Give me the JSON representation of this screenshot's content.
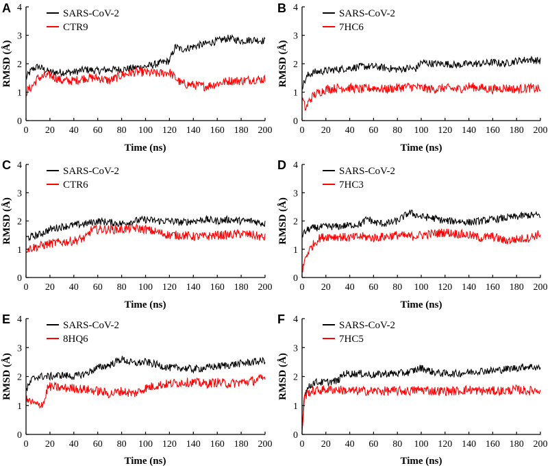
{
  "figure": {
    "description_free": true
  },
  "chart_data": [
    {
      "panel": "A",
      "type": "line",
      "xlabel": "Time (ns)",
      "ylabel": "RMSD (Å)",
      "xlim": [
        0,
        200
      ],
      "ylim": [
        0,
        4
      ],
      "xticks": [
        0,
        20,
        40,
        60,
        80,
        100,
        120,
        140,
        160,
        180,
        200
      ],
      "yticks": [
        0,
        1,
        2,
        3,
        4
      ],
      "series": [
        {
          "name": "SARS-CoV-2",
          "color": "#000000",
          "x": [
            0,
            5,
            10,
            20,
            30,
            40,
            50,
            60,
            70,
            80,
            90,
            100,
            110,
            120,
            125,
            130,
            140,
            150,
            160,
            170,
            180,
            190,
            200
          ],
          "y": [
            1.5,
            1.8,
            1.9,
            1.7,
            1.7,
            1.7,
            1.8,
            1.75,
            1.8,
            1.8,
            1.85,
            1.9,
            2.0,
            2.1,
            2.6,
            2.5,
            2.6,
            2.7,
            2.8,
            2.9,
            2.8,
            2.85,
            2.8
          ]
        },
        {
          "name": "CTR9",
          "color": "#ff0000",
          "x": [
            0,
            5,
            10,
            20,
            30,
            40,
            50,
            60,
            70,
            80,
            90,
            100,
            110,
            120,
            125,
            130,
            140,
            150,
            160,
            170,
            180,
            190,
            200
          ],
          "y": [
            1.0,
            1.2,
            1.5,
            1.6,
            1.4,
            1.4,
            1.5,
            1.5,
            1.4,
            1.6,
            1.7,
            1.7,
            1.65,
            1.7,
            1.5,
            1.3,
            1.25,
            1.2,
            1.3,
            1.4,
            1.4,
            1.45,
            1.45
          ]
        }
      ]
    },
    {
      "panel": "B",
      "type": "line",
      "xlabel": "Time (ns)",
      "ylabel": "RMSD (Å)",
      "xlim": [
        0,
        200
      ],
      "ylim": [
        0,
        4
      ],
      "xticks": [
        0,
        20,
        40,
        60,
        80,
        100,
        120,
        140,
        160,
        180,
        200
      ],
      "yticks": [
        0,
        1,
        2,
        3,
        4
      ],
      "series": [
        {
          "name": "SARS-CoV-2",
          "color": "#000000",
          "x": [
            0,
            5,
            10,
            20,
            30,
            40,
            50,
            60,
            70,
            80,
            90,
            95,
            100,
            110,
            120,
            130,
            140,
            150,
            160,
            170,
            180,
            190,
            200
          ],
          "y": [
            1.2,
            1.6,
            1.7,
            1.75,
            1.8,
            1.85,
            1.9,
            1.9,
            1.85,
            1.8,
            1.85,
            1.8,
            2.05,
            2.0,
            2.0,
            1.95,
            2.0,
            2.0,
            2.05,
            2.0,
            2.1,
            2.15,
            2.1
          ]
        },
        {
          "name": "7HC6",
          "color": "#ff0000",
          "x": [
            0,
            3,
            6,
            10,
            15,
            20,
            30,
            40,
            50,
            60,
            70,
            80,
            90,
            100,
            110,
            120,
            130,
            140,
            150,
            160,
            170,
            180,
            190,
            200
          ],
          "y": [
            0.8,
            0.4,
            0.7,
            0.9,
            1.0,
            1.1,
            1.15,
            1.15,
            1.1,
            1.15,
            1.1,
            1.15,
            1.2,
            1.15,
            1.1,
            1.15,
            1.1,
            1.2,
            1.15,
            1.1,
            1.15,
            1.1,
            1.15,
            1.1
          ]
        }
      ]
    },
    {
      "panel": "C",
      "type": "line",
      "xlabel": "Time (ns)",
      "ylabel": "RMSD (Å)",
      "xlim": [
        0,
        200
      ],
      "ylim": [
        0,
        4
      ],
      "xticks": [
        0,
        20,
        40,
        60,
        80,
        100,
        120,
        140,
        160,
        180,
        200
      ],
      "yticks": [
        0,
        1,
        2,
        3,
        4
      ],
      "series": [
        {
          "name": "SARS-CoV-2",
          "color": "#000000",
          "x": [
            0,
            10,
            20,
            30,
            40,
            50,
            60,
            70,
            80,
            90,
            100,
            110,
            120,
            130,
            140,
            150,
            160,
            170,
            180,
            190,
            200
          ],
          "y": [
            1.4,
            1.5,
            1.7,
            1.8,
            1.85,
            1.9,
            2.0,
            1.95,
            1.9,
            2.0,
            2.05,
            2.0,
            2.0,
            1.95,
            2.0,
            2.05,
            2.0,
            2.05,
            2.0,
            2.0,
            1.9
          ]
        },
        {
          "name": "CTR6",
          "color": "#ff0000",
          "x": [
            0,
            10,
            20,
            30,
            40,
            50,
            55,
            60,
            70,
            80,
            90,
            100,
            110,
            120,
            130,
            140,
            150,
            160,
            170,
            180,
            190,
            200
          ],
          "y": [
            1.0,
            1.1,
            1.2,
            1.25,
            1.3,
            1.4,
            1.7,
            1.7,
            1.7,
            1.7,
            1.75,
            1.7,
            1.6,
            1.5,
            1.5,
            1.45,
            1.45,
            1.5,
            1.5,
            1.55,
            1.5,
            1.4
          ]
        }
      ]
    },
    {
      "panel": "D",
      "type": "line",
      "xlabel": "Time (ns)",
      "ylabel": "RMSD (Å)",
      "xlim": [
        0,
        200
      ],
      "ylim": [
        0,
        4
      ],
      "xticks": [
        0,
        20,
        40,
        60,
        80,
        100,
        120,
        140,
        160,
        180,
        200
      ],
      "yticks": [
        0,
        1,
        2,
        3,
        4
      ],
      "series": [
        {
          "name": "SARS-CoV-2",
          "color": "#000000",
          "x": [
            0,
            5,
            10,
            20,
            30,
            40,
            50,
            55,
            60,
            70,
            80,
            90,
            100,
            110,
            120,
            130,
            140,
            150,
            160,
            170,
            180,
            190,
            200
          ],
          "y": [
            1.5,
            1.7,
            1.75,
            1.8,
            1.8,
            1.85,
            1.9,
            2.1,
            1.95,
            1.9,
            2.0,
            2.3,
            2.15,
            2.1,
            2.0,
            2.0,
            1.95,
            2.0,
            2.05,
            2.1,
            2.15,
            2.2,
            2.2
          ]
        },
        {
          "name": "7HC3",
          "color": "#ff0000",
          "x": [
            0,
            2,
            5,
            10,
            15,
            20,
            30,
            40,
            50,
            60,
            70,
            80,
            90,
            100,
            110,
            120,
            130,
            140,
            150,
            160,
            170,
            180,
            190,
            200
          ],
          "y": [
            0.1,
            0.6,
            0.9,
            1.2,
            1.4,
            1.45,
            1.45,
            1.4,
            1.45,
            1.4,
            1.45,
            1.5,
            1.45,
            1.5,
            1.55,
            1.6,
            1.55,
            1.5,
            1.4,
            1.45,
            1.3,
            1.35,
            1.4,
            1.55
          ]
        }
      ]
    },
    {
      "panel": "E",
      "type": "line",
      "xlabel": "Time (ns)",
      "ylabel": "RMSD (Å)",
      "xlim": [
        0,
        200
      ],
      "ylim": [
        0,
        4
      ],
      "xticks": [
        0,
        20,
        40,
        60,
        80,
        100,
        120,
        140,
        160,
        180,
        200
      ],
      "yticks": [
        0,
        1,
        2,
        3,
        4
      ],
      "series": [
        {
          "name": "SARS-CoV-2",
          "color": "#000000",
          "x": [
            0,
            5,
            10,
            20,
            30,
            40,
            50,
            60,
            70,
            80,
            90,
            100,
            110,
            120,
            130,
            140,
            150,
            160,
            170,
            180,
            190,
            200
          ],
          "y": [
            1.5,
            1.9,
            2.0,
            2.0,
            2.05,
            2.0,
            2.1,
            2.3,
            2.4,
            2.6,
            2.45,
            2.5,
            2.4,
            2.3,
            2.3,
            2.25,
            2.3,
            2.35,
            2.4,
            2.45,
            2.5,
            2.55
          ]
        },
        {
          "name": "8HQ6",
          "color": "#ff0000",
          "x": [
            0,
            5,
            10,
            15,
            18,
            20,
            30,
            40,
            50,
            60,
            70,
            80,
            90,
            100,
            110,
            120,
            130,
            140,
            150,
            160,
            170,
            180,
            190,
            200
          ],
          "y": [
            1.2,
            1.1,
            1.0,
            1.1,
            1.6,
            1.65,
            1.6,
            1.6,
            1.55,
            1.5,
            1.4,
            1.5,
            1.4,
            1.6,
            1.7,
            1.75,
            1.8,
            1.8,
            1.75,
            1.8,
            1.75,
            1.8,
            1.85,
            1.95
          ]
        }
      ]
    },
    {
      "panel": "F",
      "type": "line",
      "xlabel": "Time (ns)",
      "ylabel": "RMSD (Å)",
      "xlim": [
        0,
        200
      ],
      "ylim": [
        0,
        4
      ],
      "xticks": [
        0,
        20,
        40,
        60,
        80,
        100,
        120,
        140,
        160,
        180,
        200
      ],
      "yticks": [
        0,
        1,
        2,
        3,
        4
      ],
      "series": [
        {
          "name": "SARS-CoV-2",
          "color": "#000000",
          "x": [
            0,
            2,
            5,
            10,
            20,
            30,
            35,
            40,
            50,
            60,
            70,
            80,
            90,
            100,
            110,
            120,
            130,
            140,
            150,
            160,
            170,
            180,
            190,
            200
          ],
          "y": [
            0.2,
            1.4,
            1.6,
            1.8,
            1.8,
            1.85,
            2.1,
            2.1,
            2.1,
            2.05,
            2.1,
            2.1,
            2.15,
            2.3,
            2.15,
            2.1,
            2.1,
            2.15,
            2.2,
            2.2,
            2.25,
            2.3,
            2.35,
            2.3
          ]
        },
        {
          "name": "7HC5",
          "color": "#ff0000",
          "x": [
            0,
            2,
            5,
            10,
            20,
            30,
            40,
            50,
            60,
            70,
            80,
            90,
            100,
            110,
            120,
            130,
            140,
            150,
            160,
            170,
            180,
            190,
            200
          ],
          "y": [
            0.1,
            1.3,
            1.45,
            1.5,
            1.55,
            1.55,
            1.5,
            1.5,
            1.5,
            1.5,
            1.5,
            1.5,
            1.55,
            1.5,
            1.5,
            1.5,
            1.55,
            1.5,
            1.5,
            1.5,
            1.55,
            1.5,
            1.55
          ]
        }
      ]
    }
  ]
}
